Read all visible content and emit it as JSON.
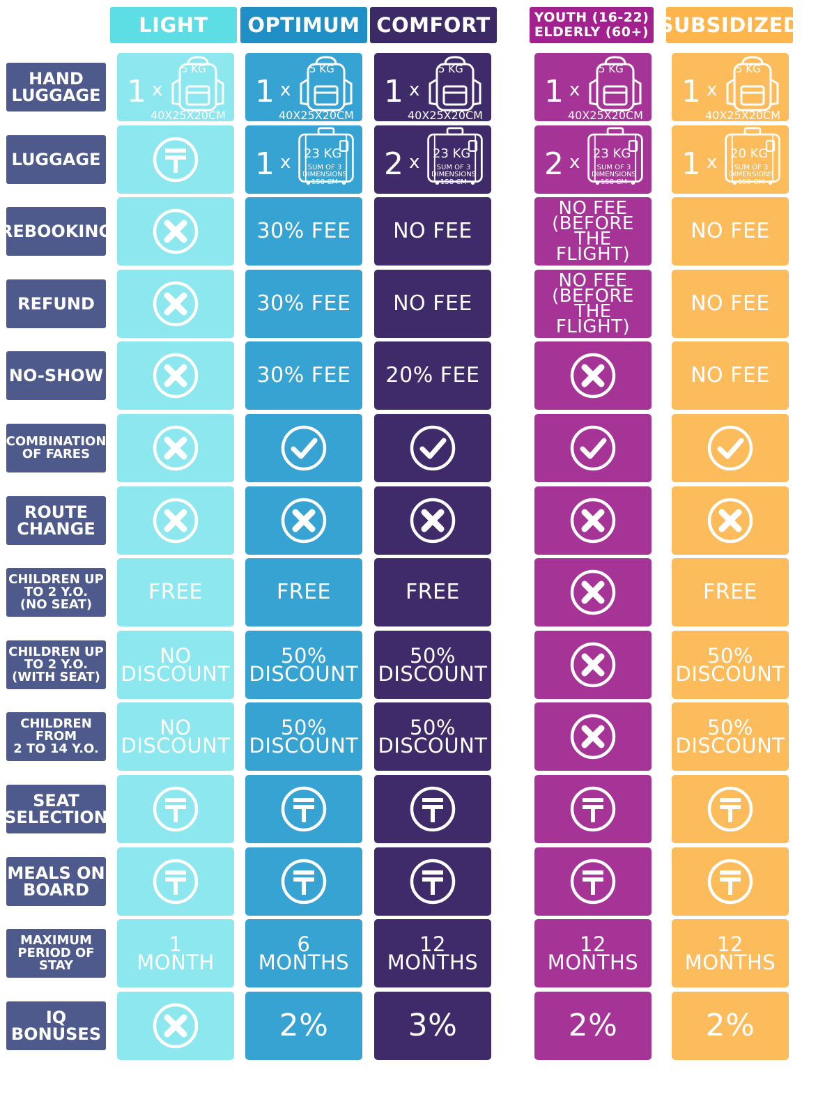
{
  "columns": [
    {
      "id": "light",
      "label": "LIGHT",
      "header_bg": "#5ddde4",
      "cell_bg": "#8ce8ee"
    },
    {
      "id": "optimum",
      "label": "OPTIMUM",
      "header_bg": "#1f8fc6",
      "cell_bg": "#36a3d3"
    },
    {
      "id": "comfort",
      "label": "COMFORT",
      "header_bg": "#3b2a66",
      "cell_bg": "#3f2b69"
    },
    {
      "id": "youth",
      "label_line1": "YOUTH (16-22)",
      "label_line2": "ELDERLY (60+)",
      "header_bg": "#a3218e",
      "cell_bg": "#a63496"
    },
    {
      "id": "subsidized",
      "label": "SUBSIDIZED",
      "header_bg": "#fdb54c",
      "cell_bg": "#fcbc5c"
    }
  ],
  "rows": [
    {
      "id": "hand_luggage",
      "lines": [
        "HAND",
        "LUGGAGE"
      ]
    },
    {
      "id": "luggage",
      "lines": [
        "LUGGAGE"
      ]
    },
    {
      "id": "rebooking",
      "lines": [
        "REBOOKING"
      ]
    },
    {
      "id": "refund",
      "lines": [
        "REFUND"
      ]
    },
    {
      "id": "no_show",
      "lines": [
        "NO-SHOW"
      ]
    },
    {
      "id": "combination",
      "lines": [
        "COMBINATION",
        "OF FARES"
      ]
    },
    {
      "id": "route_change",
      "lines": [
        "ROUTE",
        "CHANGE"
      ]
    },
    {
      "id": "children_no_seat",
      "lines": [
        "CHILDREN UP",
        "TO 2 Y.O.",
        "(NO SEAT)"
      ]
    },
    {
      "id": "children_seat",
      "lines": [
        "CHILDREN UP",
        "TO 2 Y.O.",
        "(WITH SEAT)"
      ]
    },
    {
      "id": "children_2_14",
      "lines": [
        "CHILDREN",
        "FROM",
        "2 TO 14 Y.O."
      ]
    },
    {
      "id": "seat_selection",
      "lines": [
        "SEAT",
        "SELECTION"
      ]
    },
    {
      "id": "meals",
      "lines": [
        "MEALS ON",
        "BOARD"
      ]
    },
    {
      "id": "max_stay",
      "lines": [
        "MAXIMUM",
        "PERIOD OF",
        "STAY"
      ]
    },
    {
      "id": "iq_bonuses",
      "lines": [
        "IQ",
        "BONUSES"
      ]
    }
  ],
  "cells": [
    [
      {
        "type": "hand",
        "count": "1",
        "x": "x",
        "kg": "5 KG",
        "dims": "40X25X20CM"
      },
      {
        "type": "hand",
        "count": "1",
        "x": "x",
        "kg": "5 KG",
        "dims": "40X25X20CM"
      },
      {
        "type": "hand",
        "count": "1",
        "x": "x",
        "kg": "5 KG",
        "dims": "40X25X20CM"
      },
      {
        "type": "hand",
        "count": "1",
        "x": "x",
        "kg": "5 KG",
        "dims": "40X25X20CM"
      },
      {
        "type": "hand",
        "count": "1",
        "x": "x",
        "kg": "5 KG",
        "dims": "40X25X20CM"
      }
    ],
    [
      {
        "type": "tenge"
      },
      {
        "type": "suitcase",
        "count": "1",
        "x": "x",
        "kg": "23 KG",
        "sum": [
          "SUM OF 3",
          "DIMENSIONS",
          "158 CM"
        ]
      },
      {
        "type": "suitcase",
        "count": "2",
        "x": "x",
        "kg": "23 KG",
        "sum": [
          "SUM OF 3",
          "DIMENSIONS",
          "158 CM"
        ]
      },
      {
        "type": "suitcase",
        "count": "2",
        "x": "x",
        "kg": "23 KG",
        "sum": [
          "SUM OF 3",
          "DIMENSIONS",
          "158 CM"
        ]
      },
      {
        "type": "suitcase",
        "count": "1",
        "x": "x",
        "kg": "20 KG",
        "sum": [
          "SUM OF 3",
          "DIMENSIONS",
          "158 CM"
        ]
      }
    ],
    [
      {
        "type": "cross"
      },
      {
        "type": "text",
        "lines": [
          "30% FEE"
        ]
      },
      {
        "type": "text",
        "lines": [
          "NO FEE"
        ]
      },
      {
        "type": "text",
        "small": true,
        "lines": [
          "NO FEE",
          "(BEFORE",
          "THE FLIGHT)"
        ]
      },
      {
        "type": "text",
        "lines": [
          "NO FEE"
        ]
      }
    ],
    [
      {
        "type": "cross"
      },
      {
        "type": "text",
        "lines": [
          "30% FEE"
        ]
      },
      {
        "type": "text",
        "lines": [
          "NO FEE"
        ]
      },
      {
        "type": "text",
        "small": true,
        "lines": [
          "NO FEE",
          "(BEFORE",
          "THE FLIGHT)"
        ]
      },
      {
        "type": "text",
        "lines": [
          "NO FEE"
        ]
      }
    ],
    [
      {
        "type": "cross"
      },
      {
        "type": "text",
        "lines": [
          "30% FEE"
        ]
      },
      {
        "type": "text",
        "lines": [
          "20% FEE"
        ]
      },
      {
        "type": "cross"
      },
      {
        "type": "text",
        "lines": [
          "NO FEE"
        ]
      }
    ],
    [
      {
        "type": "cross"
      },
      {
        "type": "check"
      },
      {
        "type": "check"
      },
      {
        "type": "check"
      },
      {
        "type": "check"
      }
    ],
    [
      {
        "type": "cross"
      },
      {
        "type": "cross"
      },
      {
        "type": "cross"
      },
      {
        "type": "cross"
      },
      {
        "type": "cross"
      }
    ],
    [
      {
        "type": "text",
        "lines": [
          "FREE"
        ]
      },
      {
        "type": "text",
        "lines": [
          "FREE"
        ]
      },
      {
        "type": "text",
        "lines": [
          "FREE"
        ]
      },
      {
        "type": "cross"
      },
      {
        "type": "text",
        "lines": [
          "FREE"
        ]
      }
    ],
    [
      {
        "type": "text",
        "lines": [
          "NO",
          "DISCOUNT"
        ]
      },
      {
        "type": "text",
        "lines": [
          "50%",
          "DISCOUNT"
        ]
      },
      {
        "type": "text",
        "lines": [
          "50%",
          "DISCOUNT"
        ]
      },
      {
        "type": "cross"
      },
      {
        "type": "text",
        "lines": [
          "50%",
          "DISCOUNT"
        ]
      }
    ],
    [
      {
        "type": "text",
        "lines": [
          "NO",
          "DISCOUNT"
        ]
      },
      {
        "type": "text",
        "lines": [
          "50%",
          "DISCOUNT"
        ]
      },
      {
        "type": "text",
        "lines": [
          "50%",
          "DISCOUNT"
        ]
      },
      {
        "type": "cross"
      },
      {
        "type": "text",
        "lines": [
          "50%",
          "DISCOUNT"
        ]
      }
    ],
    [
      {
        "type": "tenge"
      },
      {
        "type": "tenge"
      },
      {
        "type": "tenge"
      },
      {
        "type": "tenge"
      },
      {
        "type": "tenge"
      }
    ],
    [
      {
        "type": "tenge"
      },
      {
        "type": "tenge"
      },
      {
        "type": "tenge"
      },
      {
        "type": "tenge"
      },
      {
        "type": "tenge"
      }
    ],
    [
      {
        "type": "text",
        "lines": [
          "1",
          "MONTH"
        ]
      },
      {
        "type": "text",
        "lines": [
          "6",
          "MONTHS"
        ]
      },
      {
        "type": "text",
        "lines": [
          "12",
          "MONTHS"
        ]
      },
      {
        "type": "text",
        "lines": [
          "12",
          "MONTHS"
        ]
      },
      {
        "type": "text",
        "lines": [
          "12",
          "MONTHS"
        ]
      }
    ],
    [
      {
        "type": "cross"
      },
      {
        "type": "text",
        "big": true,
        "lines": [
          "2%"
        ]
      },
      {
        "type": "text",
        "big": true,
        "lines": [
          "3%"
        ]
      },
      {
        "type": "text",
        "big": true,
        "lines": [
          "2%"
        ]
      },
      {
        "type": "text",
        "big": true,
        "lines": [
          "2%"
        ]
      }
    ]
  ]
}
